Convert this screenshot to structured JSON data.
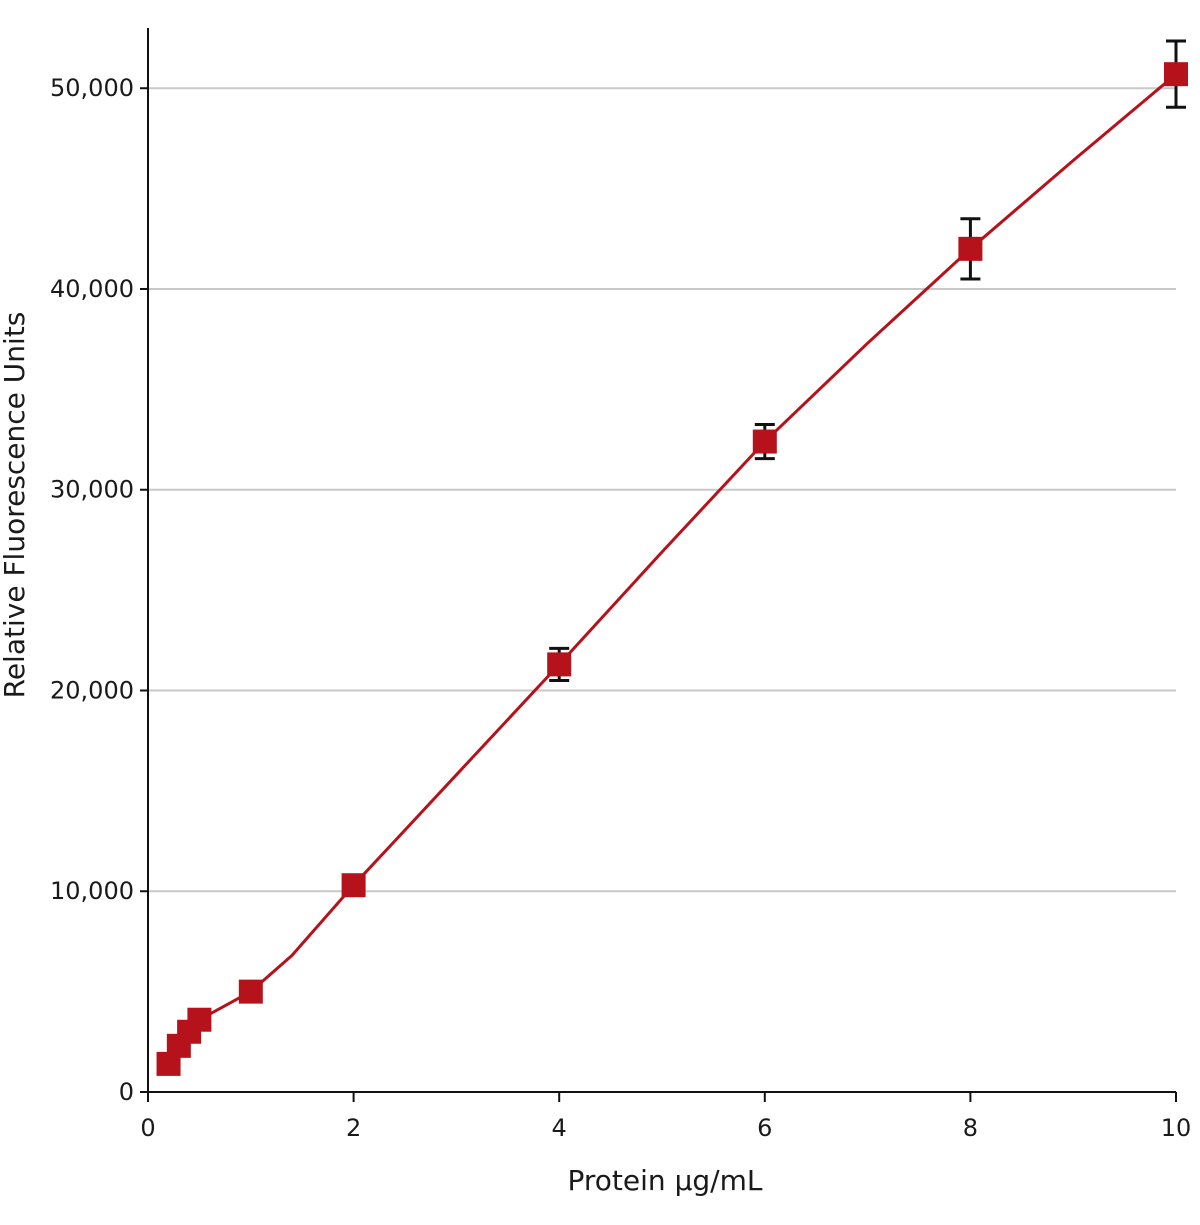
{
  "chart_data": {
    "type": "scatter",
    "title": "",
    "xlabel": "Protein μg/mL",
    "ylabel": "Relative Fluorescence Units",
    "xlim": [
      0,
      10
    ],
    "ylim": [
      0,
      53000
    ],
    "x_ticks": [
      0,
      2,
      4,
      6,
      8,
      10
    ],
    "x_tick_labels": [
      "0",
      "2",
      "4",
      "6",
      "8",
      "10"
    ],
    "y_ticks": [
      0,
      10000,
      20000,
      30000,
      40000,
      50000
    ],
    "y_tick_labels": [
      "0",
      "10,000",
      "20,000",
      "30,000",
      "40,000",
      "50,000"
    ],
    "grid": "horizontal",
    "marker": "square",
    "series": [
      {
        "points": [
          {
            "x": 0.2,
            "y": 1400,
            "err": 0
          },
          {
            "x": 0.3,
            "y": 2300,
            "err": 0
          },
          {
            "x": 0.4,
            "y": 3000,
            "err": 0
          },
          {
            "x": 0.5,
            "y": 3600,
            "err": 0
          },
          {
            "x": 1.0,
            "y": 5000,
            "err": 0
          },
          {
            "x": 2.0,
            "y": 10300,
            "err": 0
          },
          {
            "x": 4.0,
            "y": 21300,
            "err": 800
          },
          {
            "x": 6.0,
            "y": 32400,
            "err": 850
          },
          {
            "x": 8.0,
            "y": 42000,
            "err": 1500
          },
          {
            "x": 10.0,
            "y": 50700,
            "err": 1650
          }
        ],
        "curve": [
          [
            0.2,
            1400
          ],
          [
            0.3,
            2300
          ],
          [
            0.4,
            3000
          ],
          [
            0.5,
            3600
          ],
          [
            0.75,
            4300
          ],
          [
            1.0,
            5000
          ],
          [
            1.4,
            6800
          ],
          [
            2.0,
            10300
          ],
          [
            3.0,
            15800
          ],
          [
            4.0,
            21300
          ],
          [
            5.0,
            26900
          ],
          [
            6.0,
            32400
          ],
          [
            7.0,
            37300
          ],
          [
            8.0,
            42000
          ],
          [
            9.0,
            46400
          ],
          [
            10.0,
            50700
          ]
        ]
      }
    ],
    "colors": {
      "series": "#b5121b",
      "errorbar": "#111111",
      "grid": "#c8c8c8",
      "axis": "#111111"
    }
  }
}
